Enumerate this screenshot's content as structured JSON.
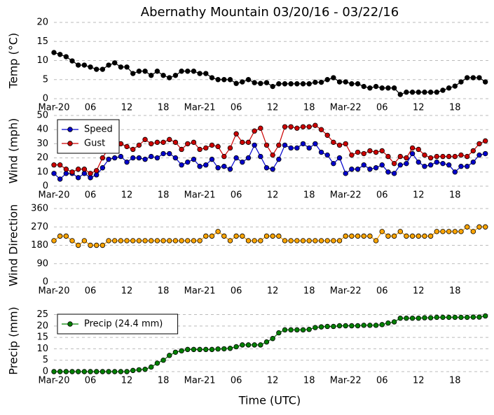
{
  "title": "Abernathy Mountain 03/20/16 - 03/22/16",
  "xlabel": "Time (UTC)",
  "chart_data": [
    {
      "type": "line",
      "ylabel": "Temp (°C)",
      "color": "#000000",
      "x": [
        0,
        1,
        2,
        3,
        4,
        5,
        6,
        7,
        8,
        9,
        10,
        11,
        12,
        13,
        14,
        15,
        16,
        17,
        18,
        19,
        20,
        21,
        22,
        23,
        24,
        25,
        26,
        27,
        28,
        29,
        30,
        31,
        32,
        33,
        34,
        35,
        36,
        37,
        38,
        39,
        40,
        41,
        42,
        43,
        44,
        45,
        46,
        47,
        48,
        49,
        50,
        51,
        52,
        53,
        54,
        55,
        56,
        57,
        58,
        59,
        60,
        61,
        62,
        63,
        64,
        65,
        66,
        67,
        68,
        69,
        70,
        71
      ],
      "values": [
        12.1,
        11.6,
        11.0,
        9.9,
        8.8,
        8.8,
        8.3,
        7.7,
        7.7,
        8.8,
        9.4,
        8.3,
        8.3,
        6.6,
        7.2,
        7.2,
        6.1,
        7.2,
        6.1,
        5.5,
        6.1,
        7.2,
        7.2,
        7.2,
        6.6,
        6.6,
        5.5,
        5.0,
        5.0,
        5.0,
        4.0,
        4.4,
        5.0,
        4.2,
        4.0,
        4.2,
        3.2,
        3.9,
        3.9,
        3.9,
        3.9,
        3.9,
        3.9,
        4.3,
        4.3,
        5.0,
        5.5,
        4.4,
        4.4,
        3.9,
        3.9,
        3.2,
        2.8,
        3.2,
        2.8,
        2.8,
        2.8,
        1.1,
        1.7,
        1.7,
        1.7,
        1.7,
        1.7,
        1.7,
        2.2,
        2.8,
        3.3,
        4.4,
        5.5,
        5.5,
        5.5,
        4.4
      ],
      "xlim": [
        0,
        71.5
      ],
      "xticks": [
        {
          "value": 0,
          "label": "Mar-20"
        },
        {
          "value": 6,
          "label": "06"
        },
        {
          "value": 12,
          "label": "12"
        },
        {
          "value": 18,
          "label": "18"
        },
        {
          "value": 24,
          "label": "Mar-21"
        },
        {
          "value": 30,
          "label": "06"
        },
        {
          "value": 36,
          "label": "12"
        },
        {
          "value": 42,
          "label": "18"
        },
        {
          "value": 48,
          "label": "Mar-22"
        },
        {
          "value": 54,
          "label": "06"
        },
        {
          "value": 60,
          "label": "12"
        },
        {
          "value": 66,
          "label": "18"
        }
      ],
      "ylim": [
        0,
        20
      ],
      "yticks": [
        0,
        5,
        10,
        15,
        20
      ],
      "grid": true
    },
    {
      "type": "line",
      "ylabel": "Wind (mph)",
      "legend": "upper left",
      "x": [
        0,
        1,
        2,
        3,
        4,
        5,
        6,
        7,
        8,
        9,
        10,
        11,
        12,
        13,
        14,
        15,
        16,
        17,
        18,
        19,
        20,
        21,
        22,
        23,
        24,
        25,
        26,
        27,
        28,
        29,
        30,
        31,
        32,
        33,
        34,
        35,
        36,
        37,
        38,
        39,
        40,
        41,
        42,
        43,
        44,
        45,
        46,
        47,
        48,
        49,
        50,
        51,
        52,
        53,
        54,
        55,
        56,
        57,
        58,
        59,
        60,
        61,
        62,
        63,
        64,
        65,
        66,
        67,
        68,
        69,
        70,
        71
      ],
      "series": [
        {
          "name": "Speed",
          "color": "#0000cc",
          "values": [
            9,
            5,
            9,
            9,
            6,
            9,
            6,
            8,
            13,
            19,
            20,
            21,
            17,
            20,
            20,
            19,
            21,
            20,
            23,
            23,
            20,
            15,
            17,
            19,
            14,
            15,
            19,
            13,
            14,
            12,
            20,
            17,
            20,
            29,
            21,
            13,
            12,
            19,
            29,
            27,
            27,
            30,
            27,
            30,
            24,
            22,
            16,
            20,
            9,
            12,
            12,
            15,
            12,
            13,
            15,
            10,
            9,
            15,
            16,
            23,
            17,
            14,
            15,
            17,
            16,
            15,
            10,
            14,
            14,
            17,
            22,
            23
          ]
        },
        {
          "name": "Gust",
          "color": "#cc0000",
          "values": [
            15,
            15,
            12,
            10,
            12,
            12,
            9,
            11,
            20,
            27,
            30,
            30,
            28,
            26,
            29,
            33,
            30,
            31,
            31,
            33,
            31,
            26,
            30,
            31,
            26,
            27,
            29,
            28,
            21,
            27,
            37,
            31,
            31,
            39,
            41,
            29,
            22,
            29,
            42,
            42,
            41,
            42,
            42,
            43,
            40,
            36,
            31,
            29,
            30,
            22,
            24,
            23,
            25,
            24,
            25,
            21,
            16,
            21,
            20,
            27,
            26,
            22,
            20,
            21,
            21,
            21,
            21,
            22,
            21,
            25,
            30,
            32
          ]
        }
      ],
      "xlim": [
        0,
        71.5
      ],
      "xticks": [
        {
          "value": 0,
          "label": "Mar-20"
        },
        {
          "value": 6,
          "label": "06"
        },
        {
          "value": 12,
          "label": "12"
        },
        {
          "value": 18,
          "label": "18"
        },
        {
          "value": 24,
          "label": "Mar-21"
        },
        {
          "value": 30,
          "label": "06"
        },
        {
          "value": 36,
          "label": "12"
        },
        {
          "value": 42,
          "label": "18"
        },
        {
          "value": 48,
          "label": "Mar-22"
        },
        {
          "value": 54,
          "label": "06"
        },
        {
          "value": 60,
          "label": "12"
        },
        {
          "value": 66,
          "label": "18"
        }
      ],
      "ylim": [
        0,
        50
      ],
      "yticks": [
        0,
        10,
        20,
        30,
        40,
        50
      ],
      "grid": true
    },
    {
      "type": "line",
      "ylabel": "Wind Direction",
      "color": "#ffa500",
      "x": [
        0,
        1,
        2,
        3,
        4,
        5,
        6,
        7,
        8,
        9,
        10,
        11,
        12,
        13,
        14,
        15,
        16,
        17,
        18,
        19,
        20,
        21,
        22,
        23,
        24,
        25,
        26,
        27,
        28,
        29,
        30,
        31,
        32,
        33,
        34,
        35,
        36,
        37,
        38,
        39,
        40,
        41,
        42,
        43,
        44,
        45,
        46,
        47,
        48,
        49,
        50,
        51,
        52,
        53,
        54,
        55,
        56,
        57,
        58,
        59,
        60,
        61,
        62,
        63,
        64,
        65,
        66,
        67,
        68,
        69,
        70,
        71
      ],
      "values": [
        202.5,
        225,
        225,
        202.5,
        180,
        202.5,
        180,
        180,
        180,
        202.5,
        202.5,
        202.5,
        202.5,
        202.5,
        202.5,
        202.5,
        202.5,
        202.5,
        202.5,
        202.5,
        202.5,
        202.5,
        202.5,
        202.5,
        202.5,
        225,
        225,
        247.5,
        225,
        202.5,
        225,
        225,
        202.5,
        202.5,
        202.5,
        225,
        225,
        225,
        202.5,
        202.5,
        202.5,
        202.5,
        202.5,
        202.5,
        202.5,
        202.5,
        202.5,
        202.5,
        225,
        225,
        225,
        225,
        225,
        202.5,
        247.5,
        225,
        225,
        247.5,
        225,
        225,
        225,
        225,
        225,
        247.5,
        247.5,
        247.5,
        247.5,
        247.5,
        270,
        247.5,
        270,
        270
      ],
      "xlim": [
        0,
        71.5
      ],
      "xticks": [
        {
          "value": 0,
          "label": "Mar-20"
        },
        {
          "value": 6,
          "label": "06"
        },
        {
          "value": 12,
          "label": "12"
        },
        {
          "value": 18,
          "label": "18"
        },
        {
          "value": 24,
          "label": "Mar-21"
        },
        {
          "value": 30,
          "label": "06"
        },
        {
          "value": 36,
          "label": "12"
        },
        {
          "value": 42,
          "label": "18"
        },
        {
          "value": 48,
          "label": "Mar-22"
        },
        {
          "value": 54,
          "label": "06"
        },
        {
          "value": 60,
          "label": "12"
        },
        {
          "value": 66,
          "label": "18"
        }
      ],
      "ylim": [
        0,
        360
      ],
      "yticks": [
        0,
        90,
        180,
        270,
        360
      ],
      "grid": true
    },
    {
      "type": "line",
      "ylabel": "Precip (mm)",
      "legend": "upper left",
      "x": [
        0,
        1,
        2,
        3,
        4,
        5,
        6,
        7,
        8,
        9,
        10,
        11,
        12,
        13,
        14,
        15,
        16,
        17,
        18,
        19,
        20,
        21,
        22,
        23,
        24,
        25,
        26,
        27,
        28,
        29,
        30,
        31,
        32,
        33,
        34,
        35,
        36,
        37,
        38,
        39,
        40,
        41,
        42,
        43,
        44,
        45,
        46,
        47,
        48,
        49,
        50,
        51,
        52,
        53,
        54,
        55,
        56,
        57,
        58,
        59,
        60,
        61,
        62,
        63,
        64,
        65,
        66,
        67,
        68,
        69,
        70,
        71
      ],
      "series": [
        {
          "name": "Precip (24.4 mm)",
          "color": "#008000",
          "values": [
            0,
            0,
            0,
            0,
            0,
            0,
            0,
            0,
            0,
            0,
            0,
            0,
            0,
            0.5,
            0.8,
            1.0,
            2.0,
            3.7,
            5.0,
            7.1,
            8.5,
            9.1,
            9.7,
            9.7,
            9.7,
            9.7,
            9.7,
            9.9,
            10.0,
            10.2,
            10.9,
            11.7,
            11.7,
            11.7,
            11.7,
            13.0,
            14.5,
            17.0,
            18.3,
            18.3,
            18.3,
            18.3,
            18.5,
            19.3,
            19.6,
            19.8,
            19.8,
            20.1,
            20.1,
            20.1,
            20.1,
            20.3,
            20.3,
            20.3,
            20.6,
            21.3,
            21.8,
            23.4,
            23.4,
            23.4,
            23.4,
            23.6,
            23.6,
            23.8,
            23.8,
            23.8,
            23.8,
            23.8,
            23.8,
            23.9,
            23.9,
            24.4
          ]
        }
      ],
      "xlim": [
        0,
        71.5
      ],
      "xticks": [
        {
          "value": 0,
          "label": "Mar-20"
        },
        {
          "value": 6,
          "label": "06"
        },
        {
          "value": 12,
          "label": "12"
        },
        {
          "value": 18,
          "label": "18"
        },
        {
          "value": 24,
          "label": "Mar-21"
        },
        {
          "value": 30,
          "label": "06"
        },
        {
          "value": 36,
          "label": "12"
        },
        {
          "value": 42,
          "label": "18"
        },
        {
          "value": 48,
          "label": "Mar-22"
        },
        {
          "value": 54,
          "label": "06"
        },
        {
          "value": 60,
          "label": "12"
        },
        {
          "value": 66,
          "label": "18"
        }
      ],
      "ylim": [
        0,
        27
      ],
      "yticks": [
        0,
        5,
        10,
        15,
        20,
        25
      ],
      "grid": true
    }
  ]
}
